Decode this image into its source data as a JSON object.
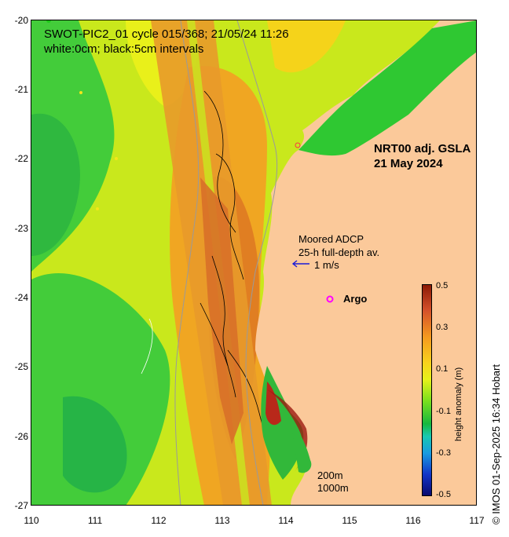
{
  "title": {
    "line1": "SWOT-PIC2_01 cycle 015/368; 21/05/24 11:26",
    "line2": "white:0cm; black:5cm intervals"
  },
  "product": {
    "line1": "NRT00 adj. GSLA",
    "line2": "21 May 2024"
  },
  "mooring": {
    "line1": "Moored ADCP",
    "line2": "25-h full-depth av.",
    "scale": "1 m/s",
    "arrow_color": "#1a1ad8"
  },
  "argo": {
    "label": "Argo",
    "marker_color": "#ff00ff"
  },
  "depth_legend": {
    "line1": "200m",
    "line2": "1000m"
  },
  "y_ticks": [
    "-20",
    "-21",
    "-22",
    "-23",
    "-24",
    "-25",
    "-26",
    "-27"
  ],
  "x_ticks": [
    "110",
    "111",
    "112",
    "113",
    "114",
    "115",
    "116",
    "117"
  ],
  "colorbar": {
    "label": "height anomaly (m)",
    "ticks": [
      "0.5",
      "0.3",
      "0.1",
      "-0.1",
      "-0.3",
      "-0.5"
    ],
    "range": [
      -0.5,
      0.5
    ]
  },
  "credit": "© IMOS 01-Sep-2025 16:34 Hobart",
  "colors": {
    "land": "#fbc99a",
    "ocean_high": "#ee9d1f",
    "ocean_mid": "#e6ef1a",
    "ocean_low": "#43cc3a"
  }
}
